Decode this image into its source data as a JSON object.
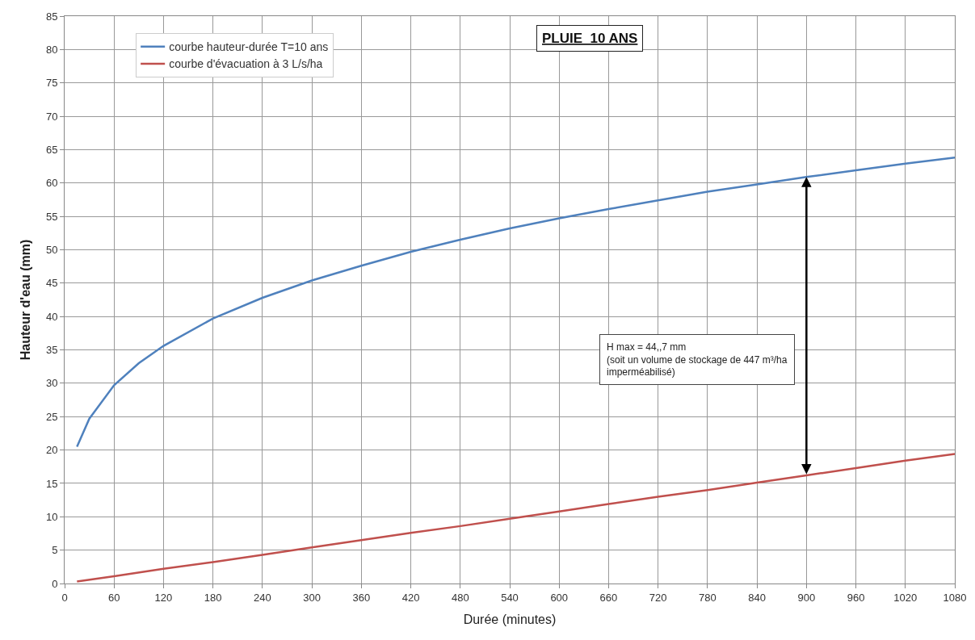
{
  "chart_data": {
    "type": "line",
    "title": "PLUIE  10 ANS",
    "xlabel": "Durée (minutes)",
    "ylabel": "Hauteur d'eau (mm)",
    "xlim": [
      0,
      1080
    ],
    "xticks": [
      0,
      60,
      120,
      180,
      240,
      300,
      360,
      420,
      480,
      540,
      600,
      660,
      720,
      780,
      840,
      900,
      960,
      1020,
      1080
    ],
    "ylim": [
      0,
      85
    ],
    "yticks": [
      0,
      5,
      10,
      15,
      20,
      25,
      30,
      35,
      40,
      45,
      50,
      55,
      60,
      65,
      70,
      75,
      80,
      85
    ],
    "grid": true,
    "legend": "top left",
    "marker": "none",
    "line_style": "solid",
    "series": [
      {
        "name": "courbe hauteur-durée T=10 ans",
        "color": "#4f81bd",
        "x": [
          15,
          30,
          60,
          90,
          120,
          180,
          240,
          300,
          360,
          420,
          480,
          540,
          600,
          660,
          720,
          780,
          840,
          900,
          960,
          1020,
          1080
        ],
        "values": [
          20.5,
          24.7,
          29.7,
          33,
          35.6,
          39.7,
          42.8,
          45.4,
          47.6,
          49.7,
          51.5,
          53.2,
          54.7,
          56.1,
          57.4,
          58.7,
          59.8,
          60.9,
          61.9,
          62.9,
          63.8
        ]
      },
      {
        "name": "courbe d'évacuation à 3 L/s/ha",
        "color": "#c0504d",
        "x": [
          15,
          60,
          120,
          180,
          240,
          300,
          360,
          420,
          480,
          540,
          600,
          660,
          720,
          780,
          840,
          900,
          960,
          1020,
          1080
        ],
        "values": [
          0.3,
          1.1,
          2.2,
          3.2,
          4.3,
          5.4,
          6.5,
          7.6,
          8.6,
          9.7,
          10.8,
          11.9,
          13,
          14,
          15.1,
          16.2,
          17.3,
          18.4,
          19.4
        ]
      }
    ],
    "annotations": [
      "H max = 44,,7 mm\n(soit un volume de stockage de 447 m³/ha\nimperméabilisé)"
    ]
  }
}
